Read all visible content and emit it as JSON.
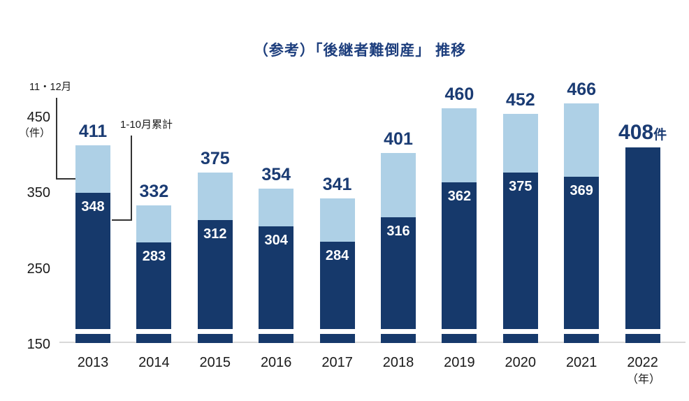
{
  "title": "（参考）「後継者難倒産」 推移",
  "annotations": {
    "light_label": "11・12月",
    "dark_label": "1-10月累計"
  },
  "chart_data": {
    "type": "bar",
    "stacked": true,
    "title": "（参考）「後継者難倒産」 推移",
    "unit_y": "（件）",
    "unit_x": "（年）",
    "categories": [
      "2013",
      "2014",
      "2015",
      "2016",
      "2017",
      "2018",
      "2019",
      "2020",
      "2021",
      "2022"
    ],
    "series": [
      {
        "name": "1-10月累計",
        "color": "#16396b",
        "values": [
          348,
          283,
          312,
          304,
          284,
          316,
          362,
          375,
          369,
          408
        ]
      },
      {
        "name": "11・12月",
        "color": "#aed0e6",
        "values": [
          63,
          49,
          63,
          50,
          57,
          85,
          98,
          77,
          97,
          0
        ]
      }
    ],
    "totals": [
      411,
      332,
      375,
      354,
      341,
      401,
      460,
      452,
      466,
      408
    ],
    "last_total_suffix": "件",
    "yticks": [
      450,
      350,
      250,
      150
    ],
    "ymin": 150,
    "ylim": [
      150,
      480
    ],
    "axis_break": true,
    "grid": false,
    "colors": {
      "bar_dark": "#16396b",
      "bar_light": "#aed0e6",
      "value_label": "#1a3b73",
      "axis_line": "#d9d9d9",
      "tick_text": "#1a1a1a",
      "title_text": "#1d3e7d"
    }
  }
}
